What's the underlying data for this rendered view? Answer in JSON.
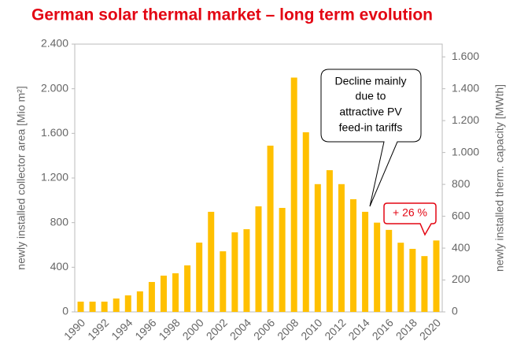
{
  "chart_data": {
    "type": "bar",
    "title": "German solar thermal market – long term evolution",
    "ylabel": "newly installed collector area [Mio m²]",
    "y2label": "newly installed therm. capacity [MWth]",
    "categories": [
      "1990",
      null,
      "1992",
      null,
      "1994",
      null,
      "1996",
      null,
      "1998",
      null,
      "2000",
      null,
      "2002",
      null,
      "2004",
      null,
      "2006",
      null,
      "2008",
      null,
      "2010",
      null,
      "2012",
      null,
      "2014",
      null,
      "2016",
      null,
      "2018",
      null,
      "2020"
    ],
    "values": [
      92,
      92,
      92,
      120,
      148,
      184,
      268,
      325,
      346,
      417,
      621,
      897,
      543,
      713,
      741,
      946,
      1490,
      932,
      2100,
      1610,
      1145,
      1270,
      1145,
      1010,
      897,
      800,
      735,
      620,
      565,
      500,
      640
    ],
    "color": "#ffc000",
    "ylim": [
      0,
      2400
    ],
    "yticks": [
      0,
      400,
      800,
      {
        "value": 1200,
        "label": "1.200"
      },
      {
        "value": 1600,
        "label": "1.600"
      },
      {
        "value": 2000,
        "label": "2.000"
      },
      {
        "value": 2400,
        "label": "2.400"
      }
    ],
    "y2lim": [
      0,
      1680
    ],
    "y2ticks": [
      0,
      200,
      400,
      600,
      800,
      {
        "value": 1000,
        "label": "1.000"
      },
      {
        "value": 1200,
        "label": "1.200"
      },
      {
        "value": 1400,
        "label": "1.400"
      },
      {
        "value": 1600,
        "label": "1.600"
      }
    ],
    "annotations": [
      [
        "Decline mainly",
        "due to",
        "attractive PV",
        "feed-in tariffs"
      ],
      "+ 26 %"
    ]
  }
}
